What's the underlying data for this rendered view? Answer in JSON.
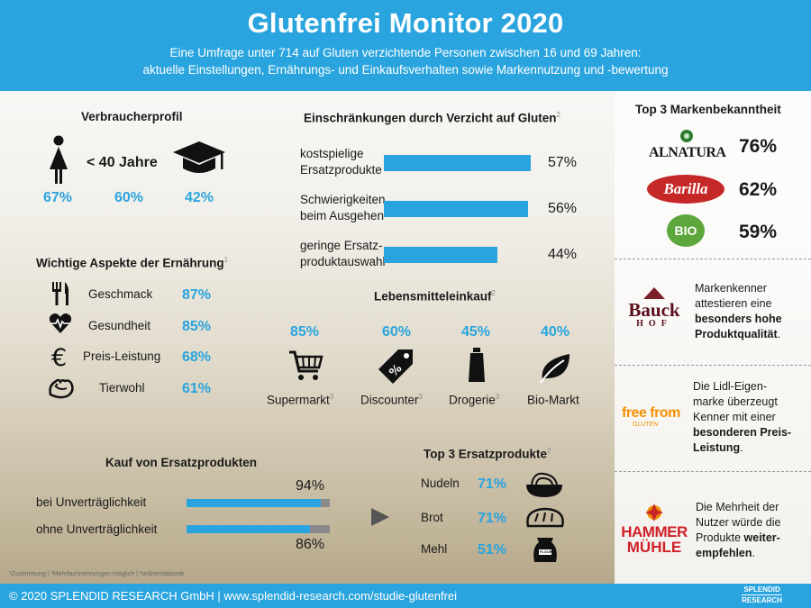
{
  "header": {
    "title": "Glutenfrei Monitor 2020",
    "subtitle_1": "Eine Umfrage unter 714 auf Gluten verzichtende Personen zwischen 16 und 69 Jahren:",
    "subtitle_2": "aktuelle Einstellungen, Ernährungs- und Einkaufsverhalten sowie Markennutzung und -bewertung"
  },
  "consumer_profile": {
    "title": "Verbraucherprofil",
    "age_label": "< 40 Jahre",
    "female_pct": "67%",
    "age_pct": "60%",
    "education_pct": "42%"
  },
  "nutrition": {
    "title": "Wichtige Aspekte der Ernährung",
    "footnote_mark": "1",
    "items": [
      {
        "label": "Geschmack",
        "value": "87%",
        "icon": "fork-knife-icon"
      },
      {
        "label": "Gesundheit",
        "value": "85%",
        "icon": "heart-pulse-icon"
      },
      {
        "label": "Preis-Leistung",
        "value": "68%",
        "icon": "euro-icon"
      },
      {
        "label": "Tierwohl",
        "value": "61%",
        "icon": "chicken-icon"
      }
    ]
  },
  "restrictions": {
    "title": "Einschränkungen durch Verzicht auf Gluten",
    "footnote_mark": "2",
    "items": [
      {
        "line1": "kostspielige",
        "line2": "Ersatzprodukte",
        "value": 57,
        "label": "57%"
      },
      {
        "line1": "Schwierigkeiten",
        "line2": "beim Ausgehen",
        "value": 56,
        "label": "56%"
      },
      {
        "line1": "geringe Ersatz-",
        "line2": "produktauswahl",
        "value": 44,
        "label": "44%"
      }
    ]
  },
  "shopping": {
    "title": "Lebensmitteleinkauf",
    "footnote_mark": "2",
    "items": [
      {
        "label": "Supermarkt",
        "sup": "3",
        "value": "85%",
        "icon": "cart-icon"
      },
      {
        "label": "Discounter",
        "sup": "3",
        "value": "60%",
        "icon": "price-tag-icon"
      },
      {
        "label": "Drogerie",
        "sup": "3",
        "value": "45%",
        "icon": "tube-icon"
      },
      {
        "label": "Bio-Markt",
        "sup": "",
        "value": "40%",
        "icon": "leaf-icon"
      }
    ]
  },
  "substitutes": {
    "title": "Kauf von Ersatzprodukten",
    "items": [
      {
        "label": "bei Unverträglichkeit",
        "value": 94,
        "display": "94%"
      },
      {
        "label": "ohne Unverträglichkeit",
        "value": 86,
        "display": "86%"
      }
    ]
  },
  "top_substitutes": {
    "title": "Top 3 Ersatzprodukte",
    "footnote_mark": "2",
    "items": [
      {
        "label": "Nudeln",
        "value": "71%",
        "icon": "pasta-icon"
      },
      {
        "label": "Brot",
        "value": "71%",
        "icon": "bread-icon"
      },
      {
        "label": "Mehl",
        "value": "51%",
        "icon": "flour-sack-icon"
      }
    ],
    "flour_text": "FLOUR"
  },
  "brand_awareness": {
    "title": "Top 3 Markenbekanntheit",
    "items": [
      {
        "brand": "ALNATURA",
        "value": "76%"
      },
      {
        "brand": "Barilla",
        "value": "62%"
      },
      {
        "brand": "BIO",
        "value": "59%"
      }
    ]
  },
  "brand_quotes": {
    "bauckhof": {
      "logo_1": "Bauck",
      "logo_2": "HOF",
      "t1": "Markenkenner",
      "t2": "attestieren eine",
      "b1": "besonders hohe",
      "b2": "Produktqualität",
      "end": "."
    },
    "freefrom": {
      "logo_1": "free from",
      "logo_2": "GLUTEN",
      "t1": "Die Lidl-Eigen-",
      "t2": "marke überzeugt",
      "t3": "Kenner mit einer",
      "b1": "besonderen Preis-",
      "b2": "Leistung",
      "end": "."
    },
    "hammer": {
      "logo_1": "HAMMER",
      "logo_2": "MÜHLE",
      "t1": "Die Mehrheit der",
      "t2": "Nutzer würde die",
      "t3": "Produkte",
      "b1": "weiter-",
      "b2": "empfehlen",
      "end": "."
    }
  },
  "footnotes": "¹Zustimmung | ²Mehrfachnennungen möglich | ³online/stationär",
  "footer": {
    "text": "© 2020  SPLENDID RESEARCH GmbH | www.splendid-research.com/studie-glutenfrei",
    "logo_1": "SPLENDID",
    "logo_2": "RESEARCH"
  },
  "colors": {
    "accent": "#2aa4de",
    "bar_grey": "#8a8a8a",
    "text": "#1a1a1a"
  }
}
